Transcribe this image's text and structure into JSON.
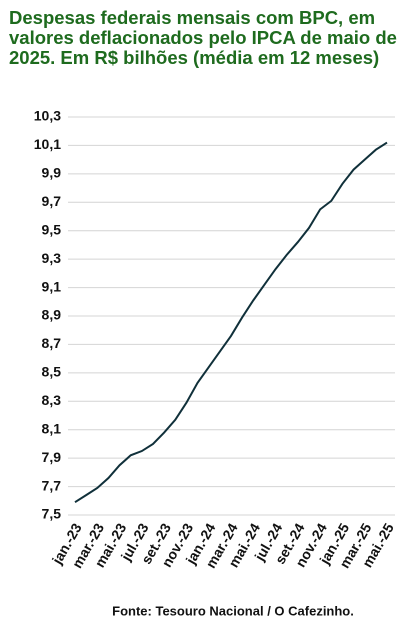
{
  "chart_data": {
    "type": "line",
    "title": "Despesas federais mensais com BPC, em valores deflacionados pelo IPCA de maio de 2025. Em R$ bilhões (média em 12 meses)",
    "source": "Fonte: Tesouro Nacional / O Cafezinho.",
    "categories": [
      "jan.-23",
      null,
      "mar.-23",
      null,
      "mai.-23",
      null,
      "jul.-23",
      null,
      "set.-23",
      null,
      "nov.-23",
      null,
      "jan.-24",
      null,
      "mar.-24",
      null,
      "mai.-24",
      null,
      "jul.-24",
      null,
      "set.-24",
      null,
      "nov.-24",
      null,
      "jan.-25",
      null,
      "mar.-25",
      null,
      "mai.-25"
    ],
    "series": [
      {
        "name": "BPC",
        "color": "#10303a",
        "values": [
          7.59,
          7.64,
          7.69,
          7.76,
          7.85,
          7.92,
          7.95,
          8.0,
          8.08,
          8.17,
          8.29,
          8.43,
          8.54,
          8.65,
          8.76,
          8.89,
          9.01,
          9.12,
          9.23,
          9.33,
          9.42,
          9.52,
          9.65,
          9.71,
          9.83,
          9.93,
          10.0,
          10.07,
          10.12
        ]
      }
    ],
    "ylim": [
      7.5,
      10.3
    ],
    "yticks": [
      {
        "value": 7.5,
        "label": "7,5"
      },
      {
        "value": 7.7,
        "label": "7,7"
      },
      {
        "value": 7.9,
        "label": "7,9"
      },
      {
        "value": 8.1,
        "label": "8,1"
      },
      {
        "value": 8.3,
        "label": "8,3"
      },
      {
        "value": 8.5,
        "label": "8,5"
      },
      {
        "value": 8.7,
        "label": "8,7"
      },
      {
        "value": 8.9,
        "label": "8,9"
      },
      {
        "value": 9.1,
        "label": "9,1"
      },
      {
        "value": 9.3,
        "label": "9,3"
      },
      {
        "value": 9.5,
        "label": "9,5"
      },
      {
        "value": 9.7,
        "label": "9,7"
      },
      {
        "value": 9.9,
        "label": "9,9"
      },
      {
        "value": 10.1,
        "label": "10,1"
      },
      {
        "value": 10.3,
        "label": "10,3"
      }
    ],
    "grid": true
  }
}
